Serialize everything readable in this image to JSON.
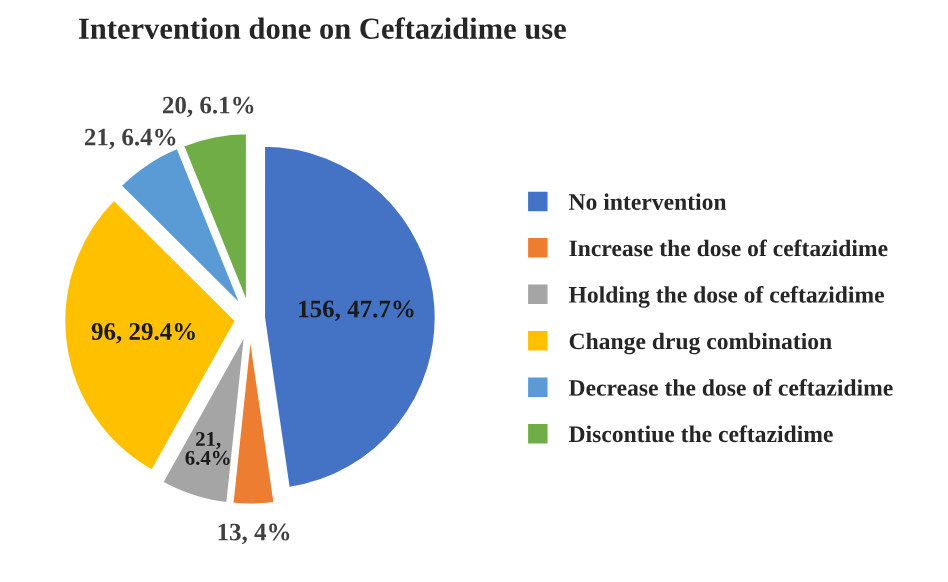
{
  "chart_data": {
    "type": "pie",
    "title": "Intervention done on Ceftazidime use",
    "categories": [
      "No intervention",
      "Increase the dose of ceftazidime",
      "Holding the dose of ceftazidime",
      "Change drug combination",
      "Decrease the dose of ceftazidime",
      "Discontiue the ceftazidime"
    ],
    "values": [
      156,
      13,
      21,
      96,
      21,
      20
    ],
    "colors": [
      "#4472c4",
      "#ed7d31",
      "#a5a5a5",
      "#ffc000",
      "#5b9bd5",
      "#70ad47"
    ],
    "value_labels": [
      "156, 47.7%",
      "13, 4%",
      "21,\n6.4%",
      "96, 29.4%",
      "21, 6.4%",
      "20, 6.1%"
    ],
    "legend": "right"
  }
}
